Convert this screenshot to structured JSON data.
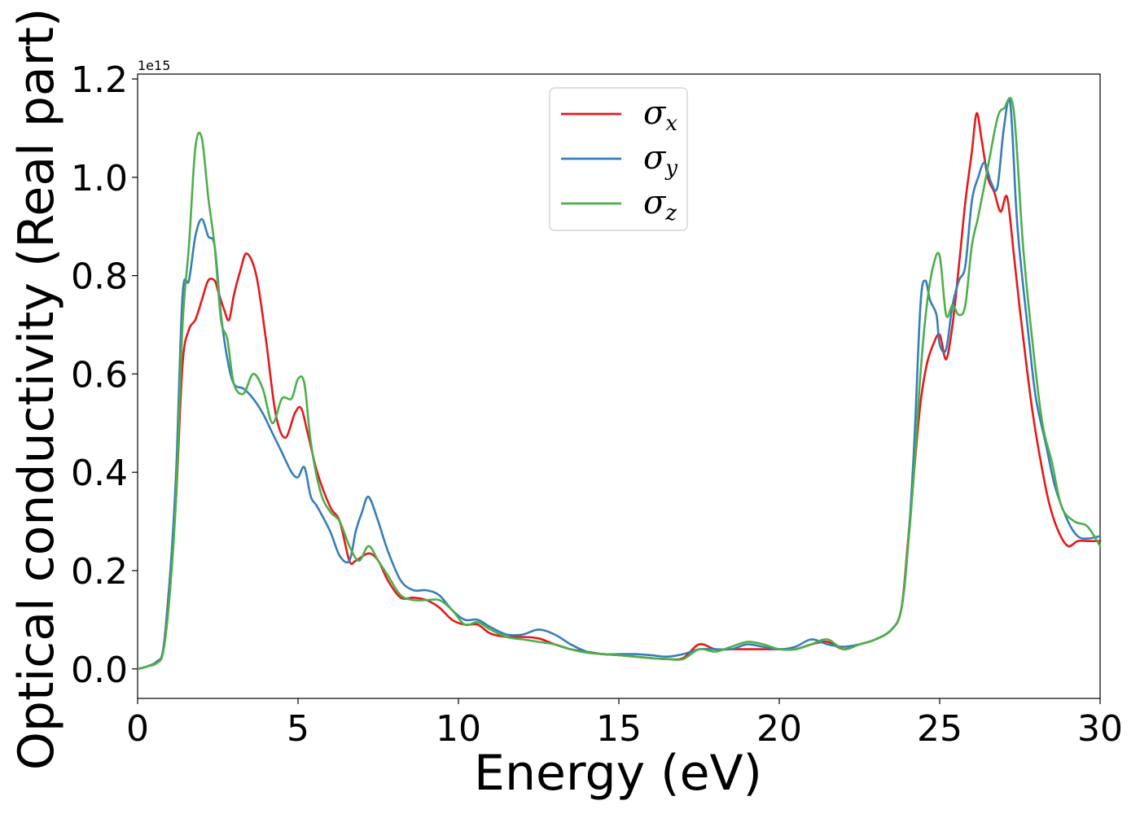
{
  "chart_data": {
    "type": "line",
    "title": "",
    "xlabel": "Energy (eV)",
    "ylabel": "Optical conductivity (Real part)",
    "offset_label": "1e15",
    "xlim": [
      0,
      30
    ],
    "ylim": [
      -0.06,
      1.21
    ],
    "xticks": [
      0,
      5,
      10,
      15,
      20,
      25,
      30
    ],
    "yticks": [
      0.0,
      0.2,
      0.4,
      0.6,
      0.8,
      1.0,
      1.2
    ],
    "xtick_labels": [
      "0",
      "5",
      "10",
      "15",
      "20",
      "25",
      "30"
    ],
    "ytick_labels": [
      "0.0",
      "0.2",
      "0.4",
      "0.6",
      "0.8",
      "1.0",
      "1.2"
    ],
    "grid": false,
    "legend_position": "upper center",
    "series": [
      {
        "name": "σx",
        "symbol": "σ",
        "subscript": "x",
        "color": "#e41a1c",
        "x": [
          0,
          0.3,
          0.6,
          0.8,
          1.0,
          1.2,
          1.4,
          1.6,
          1.8,
          2.0,
          2.2,
          2.4,
          2.5,
          2.7,
          2.85,
          3.0,
          3.2,
          3.4,
          3.7,
          4.0,
          4.3,
          4.6,
          4.9,
          5.1,
          5.3,
          5.6,
          6.0,
          6.3,
          6.6,
          6.8,
          7.2,
          7.5,
          7.8,
          8.2,
          8.6,
          9.0,
          9.4,
          9.8,
          10.2,
          10.6,
          11.0,
          11.5,
          12.0,
          12.5,
          13.0,
          13.5,
          14.0,
          14.5,
          15.0,
          15.5,
          16.0,
          16.5,
          17.0,
          17.5,
          18.0,
          18.5,
          19.0,
          19.5,
          20.0,
          20.5,
          21.0,
          21.5,
          22.0,
          22.5,
          23.0,
          23.5,
          23.8,
          24.0,
          24.2,
          24.4,
          24.6,
          24.8,
          25.0,
          25.2,
          25.4,
          25.6,
          25.8,
          26.0,
          26.15,
          26.3,
          26.5,
          26.7,
          26.9,
          27.1,
          27.3,
          27.5,
          27.7,
          27.9,
          28.1,
          28.4,
          28.7,
          29.0,
          29.3,
          29.6,
          30.0
        ],
        "y": [
          0.0,
          0.005,
          0.015,
          0.04,
          0.18,
          0.35,
          0.62,
          0.69,
          0.71,
          0.75,
          0.79,
          0.79,
          0.77,
          0.73,
          0.71,
          0.76,
          0.81,
          0.845,
          0.8,
          0.67,
          0.52,
          0.47,
          0.52,
          0.53,
          0.48,
          0.4,
          0.33,
          0.3,
          0.22,
          0.22,
          0.235,
          0.22,
          0.18,
          0.145,
          0.145,
          0.14,
          0.125,
          0.1,
          0.09,
          0.09,
          0.072,
          0.065,
          0.065,
          0.062,
          0.05,
          0.04,
          0.035,
          0.03,
          0.028,
          0.025,
          0.022,
          0.02,
          0.022,
          0.05,
          0.04,
          0.04,
          0.04,
          0.04,
          0.04,
          0.04,
          0.05,
          0.055,
          0.04,
          0.05,
          0.06,
          0.08,
          0.12,
          0.25,
          0.4,
          0.54,
          0.62,
          0.66,
          0.68,
          0.63,
          0.7,
          0.82,
          0.95,
          1.05,
          1.13,
          1.08,
          1.0,
          0.97,
          0.93,
          0.96,
          0.85,
          0.73,
          0.62,
          0.52,
          0.44,
          0.34,
          0.28,
          0.25,
          0.26,
          0.26,
          0.26
        ]
      },
      {
        "name": "σy",
        "symbol": "σ",
        "subscript": "y",
        "color": "#377eb8",
        "x": [
          0,
          0.3,
          0.6,
          0.8,
          1.0,
          1.2,
          1.4,
          1.6,
          1.8,
          2.0,
          2.2,
          2.4,
          2.6,
          2.8,
          3.0,
          3.3,
          3.6,
          3.9,
          4.2,
          4.5,
          4.8,
          5.0,
          5.2,
          5.4,
          5.6,
          6.0,
          6.3,
          6.6,
          6.8,
          7.0,
          7.2,
          7.5,
          7.8,
          8.2,
          8.6,
          9.0,
          9.4,
          9.8,
          10.2,
          10.6,
          11.0,
          11.5,
          12.0,
          12.5,
          13.0,
          13.5,
          14.0,
          14.5,
          15.0,
          15.5,
          16.0,
          16.5,
          17.0,
          17.5,
          18.0,
          18.5,
          19.0,
          19.5,
          20.0,
          20.5,
          21.0,
          21.5,
          22.0,
          22.5,
          23.0,
          23.5,
          23.8,
          24.0,
          24.2,
          24.4,
          24.55,
          24.7,
          24.9,
          25.0,
          25.2,
          25.4,
          25.6,
          25.8,
          26.0,
          26.2,
          26.4,
          26.6,
          26.8,
          27.0,
          27.2,
          27.4,
          27.6,
          27.8,
          28.0,
          28.3,
          28.6,
          29.0,
          29.3,
          29.6,
          30.0
        ],
        "y": [
          0.0,
          0.005,
          0.015,
          0.04,
          0.18,
          0.4,
          0.76,
          0.79,
          0.88,
          0.915,
          0.88,
          0.86,
          0.72,
          0.63,
          0.58,
          0.57,
          0.55,
          0.52,
          0.48,
          0.44,
          0.4,
          0.39,
          0.41,
          0.35,
          0.33,
          0.28,
          0.23,
          0.22,
          0.28,
          0.32,
          0.35,
          0.3,
          0.24,
          0.18,
          0.16,
          0.16,
          0.15,
          0.12,
          0.1,
          0.1,
          0.085,
          0.07,
          0.07,
          0.08,
          0.07,
          0.05,
          0.035,
          0.03,
          0.03,
          0.03,
          0.028,
          0.025,
          0.03,
          0.04,
          0.04,
          0.04,
          0.05,
          0.045,
          0.04,
          0.045,
          0.06,
          0.05,
          0.045,
          0.05,
          0.06,
          0.08,
          0.12,
          0.24,
          0.45,
          0.74,
          0.79,
          0.75,
          0.72,
          0.66,
          0.65,
          0.74,
          0.79,
          0.82,
          0.95,
          1.0,
          1.03,
          0.99,
          0.98,
          1.1,
          1.15,
          0.92,
          0.78,
          0.66,
          0.55,
          0.46,
          0.37,
          0.3,
          0.27,
          0.265,
          0.27
        ]
      },
      {
        "name": "σz",
        "symbol": "σ",
        "subscript": "z",
        "color": "#4daf4a",
        "x": [
          0,
          0.3,
          0.6,
          0.8,
          1.0,
          1.2,
          1.4,
          1.6,
          1.8,
          2.0,
          2.2,
          2.4,
          2.6,
          2.8,
          3.0,
          3.3,
          3.6,
          3.9,
          4.2,
          4.5,
          4.8,
          5.0,
          5.2,
          5.4,
          5.7,
          6.0,
          6.3,
          6.6,
          6.9,
          7.2,
          7.5,
          7.8,
          8.2,
          8.6,
          9.0,
          9.4,
          9.8,
          10.2,
          10.6,
          11.0,
          11.5,
          12.0,
          12.5,
          13.0,
          13.5,
          14.0,
          14.5,
          15.0,
          15.5,
          16.0,
          16.5,
          17.0,
          17.5,
          18.0,
          18.5,
          19.0,
          19.5,
          20.0,
          20.5,
          21.0,
          21.5,
          22.0,
          22.5,
          23.0,
          23.5,
          23.8,
          24.0,
          24.2,
          24.4,
          24.6,
          24.8,
          25.0,
          25.2,
          25.4,
          25.6,
          25.8,
          26.0,
          26.2,
          26.5,
          26.8,
          27.0,
          27.3,
          27.6,
          27.9,
          28.2,
          28.5,
          28.8,
          29.2,
          29.6,
          30.0
        ],
        "y": [
          0.0,
          0.005,
          0.012,
          0.035,
          0.15,
          0.35,
          0.7,
          0.86,
          1.06,
          1.08,
          0.96,
          0.86,
          0.71,
          0.67,
          0.58,
          0.56,
          0.6,
          0.57,
          0.5,
          0.55,
          0.55,
          0.59,
          0.58,
          0.46,
          0.36,
          0.32,
          0.3,
          0.25,
          0.22,
          0.25,
          0.22,
          0.19,
          0.15,
          0.14,
          0.14,
          0.14,
          0.12,
          0.09,
          0.095,
          0.08,
          0.065,
          0.06,
          0.055,
          0.05,
          0.04,
          0.033,
          0.03,
          0.028,
          0.025,
          0.022,
          0.02,
          0.02,
          0.04,
          0.035,
          0.045,
          0.055,
          0.05,
          0.04,
          0.04,
          0.05,
          0.06,
          0.04,
          0.05,
          0.06,
          0.08,
          0.12,
          0.24,
          0.4,
          0.6,
          0.74,
          0.82,
          0.84,
          0.72,
          0.74,
          0.72,
          0.74,
          0.86,
          0.92,
          1.02,
          1.12,
          1.14,
          1.14,
          0.86,
          0.66,
          0.5,
          0.42,
          0.33,
          0.3,
          0.29,
          0.25
        ]
      }
    ]
  }
}
